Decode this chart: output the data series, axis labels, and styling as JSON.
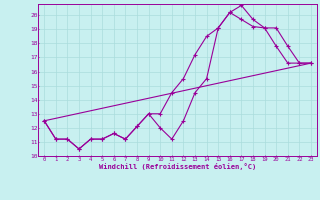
{
  "xlabel": "Windchill (Refroidissement éolien,°C)",
  "bg_color": "#c8f0f0",
  "line_color": "#990099",
  "grid_color": "#aadddd",
  "xlim": [
    -0.5,
    23.5
  ],
  "ylim": [
    10,
    20.8
  ],
  "xticks": [
    0,
    1,
    2,
    3,
    4,
    5,
    6,
    7,
    8,
    9,
    10,
    11,
    12,
    13,
    14,
    15,
    16,
    17,
    18,
    19,
    20,
    21,
    22,
    23
  ],
  "yticks": [
    10,
    11,
    12,
    13,
    14,
    15,
    16,
    17,
    18,
    19,
    20
  ],
  "line1_x": [
    0,
    1,
    2,
    3,
    4,
    5,
    6,
    7,
    8,
    9,
    10,
    11,
    12,
    13,
    14,
    15,
    16,
    17,
    18,
    19,
    20,
    21,
    22,
    23
  ],
  "line1_y": [
    12.5,
    11.2,
    11.2,
    10.5,
    11.2,
    11.2,
    11.6,
    11.2,
    12.1,
    13.0,
    12.0,
    11.2,
    12.5,
    14.5,
    15.5,
    19.1,
    20.2,
    20.7,
    19.7,
    19.1,
    19.1,
    17.8,
    16.6,
    16.6
  ],
  "line2_x": [
    0,
    1,
    2,
    3,
    4,
    5,
    6,
    7,
    8,
    9,
    10,
    11,
    12,
    13,
    14,
    15,
    16,
    17,
    18,
    19,
    20,
    21,
    22,
    23
  ],
  "line2_y": [
    12.5,
    11.2,
    11.2,
    10.5,
    11.2,
    11.2,
    11.6,
    11.2,
    12.1,
    13.0,
    13.0,
    14.5,
    15.5,
    17.2,
    18.5,
    19.1,
    20.2,
    19.7,
    19.2,
    19.1,
    17.8,
    16.6,
    16.6,
    16.6
  ],
  "line3_x": [
    0,
    23
  ],
  "line3_y": [
    12.5,
    16.6
  ]
}
